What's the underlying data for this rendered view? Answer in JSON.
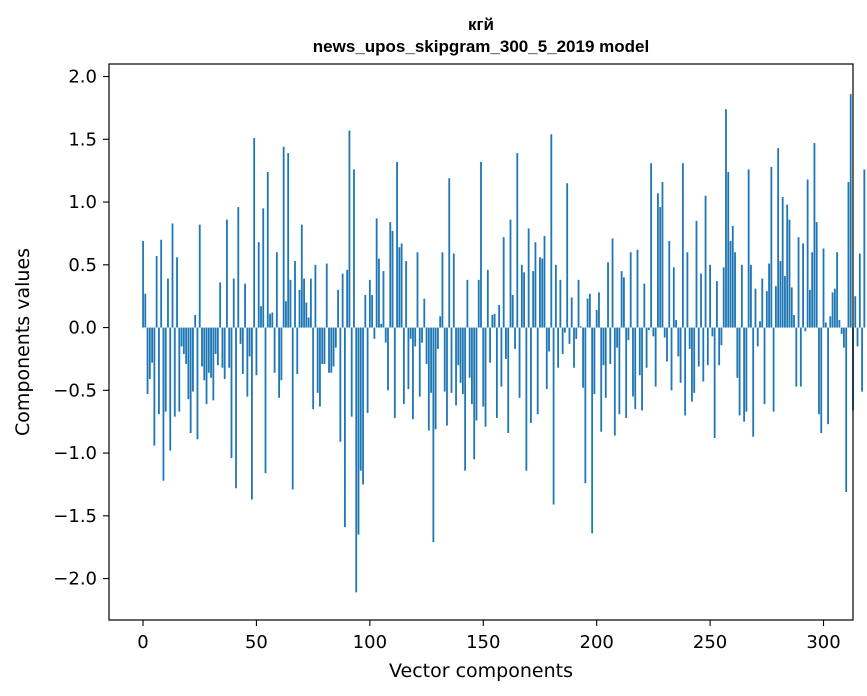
{
  "chart_data": {
    "type": "bar",
    "title_line1": "кгй",
    "title_line2": "news_upos_skipgram_300_5_2019 model",
    "xlabel": "Vector components",
    "ylabel": "Components values",
    "xlim": [
      -15,
      313
    ],
    "ylim": [
      -2.33,
      2.1
    ],
    "xticks": [
      0,
      50,
      100,
      150,
      200,
      250,
      300
    ],
    "yticks": [
      -2.0,
      -1.5,
      -1.0,
      -0.5,
      0.0,
      0.5,
      1.0,
      1.5,
      2.0
    ],
    "xtick_labels": [
      "0",
      "50",
      "100",
      "150",
      "200",
      "250",
      "300"
    ],
    "ytick_labels": [
      "−2.0",
      "−1.5",
      "−1.0",
      "−0.5",
      "0.0",
      "0.5",
      "1.0",
      "1.5",
      "2.0"
    ],
    "bar_color": "#1f77b4",
    "values": [
      0.69,
      0.27,
      -0.53,
      -0.41,
      -0.28,
      -0.94,
      0.57,
      -0.69,
      0.7,
      -1.22,
      -0.67,
      0.39,
      -0.98,
      0.83,
      -0.71,
      0.56,
      -0.67,
      -0.15,
      -0.21,
      -0.29,
      -0.57,
      -0.84,
      -0.51,
      0.1,
      -0.89,
      0.82,
      -0.31,
      -0.42,
      -0.61,
      -0.36,
      -0.4,
      -0.58,
      -0.21,
      -0.3,
      0.36,
      -0.32,
      -0.41,
      0.86,
      -0.32,
      -1.04,
      0.39,
      -1.28,
      0.96,
      -0.13,
      -0.37,
      0.35,
      -0.55,
      -0.23,
      -1.37,
      1.51,
      -0.38,
      0.68,
      0.17,
      0.95,
      -1.16,
      1.24,
      0.11,
      0.12,
      -0.36,
      0.6,
      -0.56,
      -0.42,
      1.44,
      0.21,
      1.39,
      0.38,
      -1.29,
      0.53,
      -0.37,
      0.3,
      0.82,
      0.39,
      0.2,
      0.08,
      0.39,
      -0.65,
      0.5,
      -0.52,
      -0.63,
      -0.29,
      -0.29,
      0.51,
      -0.36,
      -0.36,
      -0.31,
      -0.16,
      0.3,
      -0.91,
      0.43,
      -1.59,
      0.46,
      1.57,
      -0.71,
      1.26,
      -2.11,
      -1.65,
      -1.14,
      -1.25,
      0.26,
      -0.68,
      0.38,
      0.26,
      -0.09,
      0.87,
      0.55,
      0.03,
      0.45,
      -0.12,
      -0.5,
      0.84,
      0.77,
      -0.72,
      1.32,
      0.64,
      0.67,
      -0.61,
      0.53,
      -0.49,
      -0.09,
      -0.73,
      -0.15,
      0.6,
      -0.55,
      -0.12,
      0.23,
      -0.29,
      -0.82,
      -0.52,
      -1.71,
      -0.81,
      -0.17,
      0.09,
      0.6,
      -0.51,
      -0.78,
      1.19,
      -0.52,
      0.59,
      -0.62,
      -0.3,
      -0.44,
      -0.53,
      -1.14,
      0.38,
      -0.4,
      -0.61,
      -1.05,
      -0.74,
      0.38,
      1.32,
      -0.63,
      -0.79,
      0.46,
      -0.28,
      0.1,
      0.11,
      -0.72,
      0.18,
      -0.47,
      0.72,
      -0.25,
      -0.84,
      0.86,
      0.26,
      -0.17,
      1.39,
      -0.56,
      0.5,
      0.44,
      -1.14,
      0.79,
      -0.76,
      0.45,
      0.68,
      -0.69,
      0.56,
      0.55,
      0.73,
      -0.49,
      -0.19,
      1.54,
      -1.41,
      0.5,
      -0.32,
      0.38,
      -0.21,
      -0.04,
      1.15,
      -0.13,
      0.24,
      -0.32,
      -0.09,
      0.38,
      0.01,
      -0.48,
      -1.24,
      0.23,
      0.27,
      -1.64,
      -0.53,
      0.14,
      0.28,
      -0.83,
      -0.3,
      -0.56,
      0.52,
      -0.29,
      0.71,
      -0.86,
      -0.16,
      -0.69,
      0.45,
      0.4,
      -0.72,
      -0.1,
      0.6,
      -0.55,
      -0.65,
      0.62,
      -0.38,
      -0.66,
      0.35,
      -0.32,
      -0.02,
      1.31,
      -0.07,
      -0.47,
      1.07,
      0.96,
      1.16,
      -0.08,
      -0.27,
      0.69,
      -0.5,
      0.48,
      0.06,
      -0.23,
      -0.44,
      1.31,
      -0.7,
      0.6,
      -0.17,
      -0.59,
      -0.52,
      0.85,
      -0.31,
      0.43,
      -0.43,
      1.05,
      -0.3,
      0.5,
      -0.07,
      -0.88,
      0.37,
      -0.3,
      -0.14,
      0.48,
      1.74,
      1.24,
      0.69,
      0.81,
      0.6,
      -0.4,
      -0.7,
      0.5,
      -0.75,
      -0.67,
      1.26,
      0.5,
      -0.87,
      0.31,
      -0.15,
      0.05,
      0.39,
      -0.61,
      0.29,
      0.51,
      1.28,
      -0.67,
      0.33,
      1.43,
      0.53,
      1.04,
      0.41,
      0.98,
      0.86,
      0.32,
      0.1,
      -0.47,
      0.72,
      -0.47,
      0.67,
      -0.03,
      1.18,
      0.3,
      0.6,
      1.47,
      0.84,
      -0.69,
      -0.84,
      0.63,
      0.04,
      -0.77,
      0.09,
      0.28,
      0.31,
      0.6,
      0.06,
      -0.05,
      -0.16,
      -1.31,
      1.16,
      1.86,
      -0.66,
      0.25,
      -0.15,
      0.59,
      -0.51,
      1.26
    ]
  }
}
